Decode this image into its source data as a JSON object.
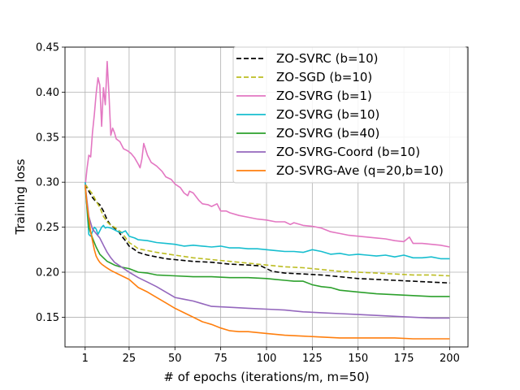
{
  "chart_data": {
    "type": "line",
    "title": "",
    "xlabel": "# of epochs (iterations/m, m=50)",
    "ylabel": "Training loss",
    "xlim": [
      -10,
      210
    ],
    "ylim": [
      0.117,
      0.45
    ],
    "xticks": [
      1,
      25,
      50,
      75,
      100,
      125,
      150,
      175,
      200
    ],
    "xtick_labels": [
      "1",
      "25",
      "50",
      "75",
      "100",
      "125",
      "150",
      "175",
      "200"
    ],
    "yticks": [
      0.15,
      0.2,
      0.25,
      0.3,
      0.35,
      0.4,
      0.45
    ],
    "ytick_labels": [
      "0.15",
      "0.20",
      "0.25",
      "0.30",
      "0.35",
      "0.40",
      "0.45"
    ],
    "grid": true,
    "legend_position": "top-right",
    "series": [
      {
        "name": "ZO-SVRC (b=10)",
        "color": "#000000",
        "dash": "dashed",
        "x": [
          1,
          3,
          5,
          7,
          9,
          11,
          13,
          15,
          17,
          19,
          21,
          23,
          25,
          28,
          30,
          35,
          40,
          45,
          50,
          60,
          70,
          80,
          90,
          97,
          100,
          103,
          110,
          120,
          130,
          140,
          150,
          160,
          170,
          180,
          190,
          200
        ],
        "y": [
          0.298,
          0.29,
          0.283,
          0.278,
          0.275,
          0.268,
          0.258,
          0.252,
          0.249,
          0.246,
          0.24,
          0.235,
          0.229,
          0.225,
          0.222,
          0.219,
          0.217,
          0.215,
          0.214,
          0.212,
          0.211,
          0.209,
          0.208,
          0.207,
          0.204,
          0.201,
          0.199,
          0.198,
          0.197,
          0.195,
          0.193,
          0.192,
          0.191,
          0.19,
          0.189,
          0.188
        ]
      },
      {
        "name": "ZO-SGD (b=10)",
        "color": "#bcbd22",
        "dash": "dashed",
        "x": [
          1,
          3,
          5,
          7,
          9,
          11,
          13,
          15,
          17,
          19,
          21,
          25,
          28,
          30,
          35,
          40,
          50,
          60,
          70,
          80,
          90,
          100,
          110,
          120,
          130,
          140,
          150,
          160,
          170,
          180,
          190,
          200
        ],
        "y": [
          0.298,
          0.292,
          0.287,
          0.279,
          0.272,
          0.262,
          0.256,
          0.252,
          0.25,
          0.247,
          0.244,
          0.233,
          0.229,
          0.226,
          0.224,
          0.222,
          0.219,
          0.216,
          0.214,
          0.212,
          0.21,
          0.208,
          0.206,
          0.205,
          0.203,
          0.201,
          0.2,
          0.199,
          0.198,
          0.197,
          0.197,
          0.196
        ]
      },
      {
        "name": "ZO-SVRG (b=1)",
        "color": "#e377c2",
        "dash": "solid",
        "x": [
          1,
          2,
          3,
          4,
          5,
          6,
          7,
          8,
          9,
          10,
          11,
          12,
          13,
          14,
          15,
          16,
          17,
          18,
          20,
          22,
          24,
          26,
          28,
          30,
          31,
          32,
          33,
          35,
          37,
          40,
          43,
          45,
          48,
          50,
          53,
          55,
          57,
          58,
          60,
          63,
          65,
          68,
          70,
          73,
          75,
          78,
          80,
          85,
          90,
          95,
          100,
          105,
          110,
          113,
          115,
          120,
          125,
          130,
          135,
          140,
          145,
          150,
          155,
          160,
          165,
          170,
          175,
          178,
          180,
          185,
          190,
          195,
          200
        ],
        "y": [
          0.295,
          0.315,
          0.33,
          0.328,
          0.355,
          0.375,
          0.398,
          0.416,
          0.408,
          0.362,
          0.405,
          0.386,
          0.434,
          0.398,
          0.352,
          0.36,
          0.355,
          0.348,
          0.345,
          0.337,
          0.335,
          0.332,
          0.327,
          0.32,
          0.316,
          0.326,
          0.343,
          0.33,
          0.322,
          0.318,
          0.312,
          0.306,
          0.303,
          0.298,
          0.294,
          0.288,
          0.285,
          0.29,
          0.288,
          0.28,
          0.276,
          0.275,
          0.273,
          0.276,
          0.268,
          0.268,
          0.266,
          0.263,
          0.261,
          0.259,
          0.258,
          0.256,
          0.256,
          0.253,
          0.255,
          0.252,
          0.251,
          0.249,
          0.245,
          0.243,
          0.241,
          0.24,
          0.239,
          0.238,
          0.237,
          0.235,
          0.234,
          0.239,
          0.232,
          0.232,
          0.231,
          0.23,
          0.228
        ]
      },
      {
        "name": "ZO-SVRG (b=10)",
        "color": "#17becf",
        "dash": "solid",
        "x": [
          1,
          2,
          3,
          4,
          5,
          6,
          7,
          8,
          9,
          10,
          11,
          12,
          13,
          15,
          17,
          19,
          21,
          23,
          25,
          28,
          30,
          35,
          40,
          45,
          50,
          55,
          60,
          65,
          70,
          75,
          80,
          85,
          90,
          95,
          100,
          105,
          110,
          115,
          120,
          125,
          130,
          135,
          140,
          145,
          150,
          155,
          160,
          165,
          170,
          175,
          180,
          185,
          190,
          195,
          200
        ],
        "y": [
          0.3,
          0.27,
          0.242,
          0.24,
          0.245,
          0.25,
          0.248,
          0.242,
          0.246,
          0.25,
          0.252,
          0.249,
          0.25,
          0.249,
          0.247,
          0.245,
          0.244,
          0.246,
          0.24,
          0.238,
          0.236,
          0.235,
          0.233,
          0.232,
          0.231,
          0.229,
          0.23,
          0.229,
          0.228,
          0.229,
          0.227,
          0.227,
          0.226,
          0.226,
          0.225,
          0.224,
          0.223,
          0.223,
          0.222,
          0.225,
          0.223,
          0.22,
          0.221,
          0.219,
          0.22,
          0.219,
          0.218,
          0.219,
          0.217,
          0.219,
          0.216,
          0.216,
          0.217,
          0.215,
          0.215
        ]
      },
      {
        "name": "ZO-SVRG (b=40)",
        "color": "#2ca02c",
        "dash": "solid",
        "x": [
          1,
          3,
          5,
          7,
          9,
          11,
          13,
          15,
          17,
          20,
          25,
          30,
          35,
          40,
          50,
          60,
          70,
          80,
          90,
          100,
          105,
          110,
          115,
          120,
          125,
          130,
          135,
          140,
          150,
          160,
          170,
          180,
          190,
          200
        ],
        "y": [
          0.295,
          0.25,
          0.238,
          0.228,
          0.22,
          0.216,
          0.212,
          0.21,
          0.208,
          0.206,
          0.204,
          0.2,
          0.199,
          0.197,
          0.196,
          0.195,
          0.195,
          0.194,
          0.194,
          0.193,
          0.192,
          0.191,
          0.19,
          0.19,
          0.186,
          0.184,
          0.183,
          0.18,
          0.178,
          0.176,
          0.175,
          0.174,
          0.173,
          0.173
        ]
      },
      {
        "name": "ZO-SVRG-Coord (b=10)",
        "color": "#9467bd",
        "dash": "solid",
        "x": [
          1,
          3,
          5,
          7,
          9,
          11,
          13,
          15,
          17,
          20,
          25,
          30,
          35,
          40,
          45,
          50,
          55,
          60,
          65,
          70,
          80,
          90,
          100,
          110,
          120,
          130,
          140,
          150,
          160,
          170,
          180,
          190,
          200
        ],
        "y": [
          0.297,
          0.262,
          0.248,
          0.243,
          0.238,
          0.23,
          0.222,
          0.216,
          0.211,
          0.207,
          0.2,
          0.194,
          0.189,
          0.184,
          0.178,
          0.172,
          0.17,
          0.168,
          0.165,
          0.162,
          0.161,
          0.16,
          0.159,
          0.158,
          0.156,
          0.155,
          0.154,
          0.153,
          0.152,
          0.151,
          0.15,
          0.149,
          0.149
        ]
      },
      {
        "name": "ZO-SVRG-Ave (q=20,b=10)",
        "color": "#ff7f0e",
        "dash": "solid",
        "x": [
          1,
          2,
          3,
          4,
          5,
          6,
          7,
          8,
          9,
          10,
          12,
          15,
          20,
          25,
          30,
          35,
          40,
          45,
          50,
          55,
          60,
          65,
          70,
          75,
          80,
          85,
          90,
          100,
          110,
          120,
          130,
          140,
          150,
          160,
          170,
          180,
          190,
          200
        ],
        "y": [
          0.297,
          0.275,
          0.26,
          0.245,
          0.235,
          0.225,
          0.218,
          0.214,
          0.211,
          0.209,
          0.206,
          0.202,
          0.197,
          0.192,
          0.183,
          0.178,
          0.172,
          0.166,
          0.16,
          0.155,
          0.15,
          0.145,
          0.142,
          0.138,
          0.135,
          0.134,
          0.134,
          0.132,
          0.13,
          0.129,
          0.128,
          0.127,
          0.127,
          0.127,
          0.127,
          0.126,
          0.126,
          0.126
        ]
      }
    ]
  }
}
